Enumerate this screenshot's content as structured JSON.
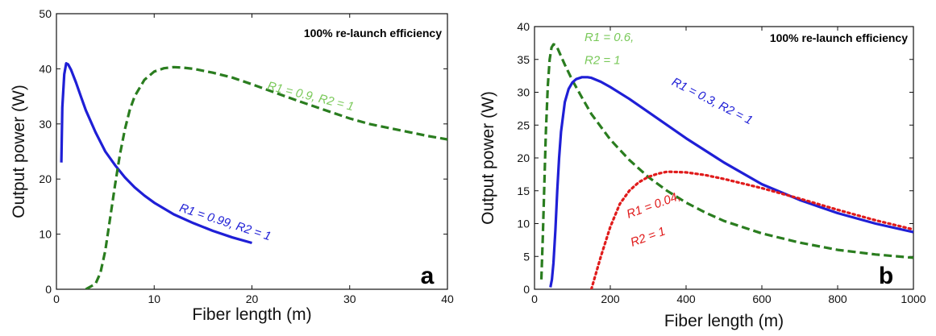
{
  "chart_data": [
    {
      "type": "line",
      "panel_letter": "a",
      "annotation": "100% re-launch efficiency",
      "xlabel": "Fiber length (m)",
      "ylabel": "Output power (W)",
      "xlim": [
        0,
        40
      ],
      "ylim": [
        0,
        50
      ],
      "xticks": [
        0,
        10,
        20,
        30,
        40
      ],
      "yticks": [
        0,
        10,
        20,
        30,
        40,
        50
      ],
      "grid": false,
      "series": [
        {
          "label": "R1 = 0.99, R2 = 1",
          "color": "#1f1fd6",
          "style": "solid",
          "x": [
            0.5,
            0.6,
            0.8,
            1.0,
            1.2,
            1.5,
            2,
            2.5,
            3,
            4,
            5,
            6,
            7,
            8,
            9,
            10,
            12,
            14,
            16,
            18,
            20
          ],
          "y": [
            23,
            33,
            39,
            41,
            40.8,
            39.8,
            37.5,
            35,
            32.5,
            28.5,
            25,
            22.5,
            20.3,
            18.5,
            17,
            15.7,
            13.6,
            12,
            10.6,
            9.4,
            8.4
          ]
        },
        {
          "label": "R1 = 0.9, R2 = 1",
          "color": "#2a7d1f",
          "style": "dashed",
          "x": [
            3,
            3.5,
            4,
            4.5,
            5,
            5.5,
            6,
            6.5,
            7,
            7.5,
            8,
            9,
            10,
            11,
            12,
            13,
            14,
            16,
            18,
            20,
            22,
            25,
            28,
            30,
            32,
            35,
            38,
            40
          ],
          "y": [
            0,
            0.5,
            1,
            3,
            7,
            13,
            19,
            24.5,
            29,
            32.5,
            35,
            38,
            39.5,
            40.1,
            40.3,
            40.2,
            40,
            39.3,
            38.4,
            37.2,
            35.9,
            34,
            32.2,
            31,
            30,
            28.9,
            27.8,
            27.2
          ]
        }
      ],
      "labels_on_curves": [
        {
          "text": "R1 = 0.99, R2 = 1",
          "x": 12.5,
          "y": 14.2,
          "rotate": 18,
          "color": "#1f1fd6"
        },
        {
          "text": "R1 = 0.9, R2 = 1",
          "x": 21.5,
          "y": 36.3,
          "rotate": 14,
          "color": "#7ac95a"
        }
      ]
    },
    {
      "type": "line",
      "panel_letter": "b",
      "annotation": "100% re-launch efficiency",
      "xlabel": "Fiber length (m)",
      "ylabel": "Output power (W)",
      "xlim": [
        0,
        1000
      ],
      "ylim": [
        0,
        40
      ],
      "xticks": [
        0,
        200,
        400,
        600,
        800,
        1000
      ],
      "yticks": [
        0,
        5,
        10,
        15,
        20,
        25,
        30,
        35,
        40
      ],
      "grid": false,
      "series": [
        {
          "label": "R1 = 0.6, R2 = 1",
          "color": "#2a7d1f",
          "style": "dashed",
          "x": [
            18,
            22,
            26,
            30,
            35,
            40,
            45,
            50,
            55,
            60,
            70,
            80,
            100,
            125,
            150,
            200,
            250,
            300,
            350,
            400,
            450,
            500,
            600,
            700,
            800,
            900,
            1000
          ],
          "y": [
            1.5,
            8,
            16,
            24,
            31,
            35,
            36.8,
            37.3,
            37.2,
            36.8,
            35.5,
            34.2,
            31.8,
            29.2,
            26.7,
            22.8,
            19.7,
            17.1,
            15,
            13.2,
            11.7,
            10.4,
            8.5,
            7.1,
            6,
            5.3,
            4.8
          ]
        },
        {
          "label": "R1 = 0.3, R2 = 1",
          "color": "#1f1fd6",
          "style": "solid",
          "x": [
            42,
            46,
            50,
            55,
            60,
            65,
            70,
            80,
            90,
            100,
            110,
            125,
            140,
            150,
            175,
            200,
            250,
            300,
            400,
            500,
            600,
            700,
            800,
            900,
            1000
          ],
          "y": [
            0.3,
            1.5,
            4,
            9,
            15,
            20,
            24,
            28.5,
            30.5,
            31.5,
            32,
            32.3,
            32.3,
            32.2,
            31.6,
            30.8,
            29,
            27,
            23,
            19.3,
            16,
            13.6,
            11.6,
            10,
            8.7
          ]
        },
        {
          "label": "R1 = 0.04, R2 = 1",
          "color": "#e01b1b",
          "style": "dotted",
          "x": [
            150,
            175,
            200,
            225,
            250,
            275,
            300,
            325,
            350,
            400,
            450,
            500,
            550,
            600,
            650,
            700,
            800,
            900,
            1000
          ],
          "y": [
            0,
            5,
            9.5,
            13,
            15,
            16.3,
            17.1,
            17.6,
            17.9,
            17.8,
            17.4,
            16.8,
            16.1,
            15.4,
            14.6,
            13.8,
            12.1,
            10.5,
            9.1
          ]
        }
      ],
      "labels_on_curves": [
        {
          "text": "R1 = 0.6,",
          "x": 132,
          "y": 37.8,
          "rotate": 0,
          "color": "#7ac95a"
        },
        {
          "text": "R2 = 1",
          "x": 132,
          "y": 34.3,
          "rotate": 0,
          "color": "#7ac95a"
        },
        {
          "text": "R1 = 0.3, R2 = 1",
          "x": 360,
          "y": 31.2,
          "rotate": 27,
          "color": "#1f1fd6"
        },
        {
          "text": "R1 = 0.04,",
          "x": 248,
          "y": 10.8,
          "rotate": -20,
          "color": "#e01b1b"
        },
        {
          "text": "R2 = 1",
          "x": 258,
          "y": 6.5,
          "rotate": -20,
          "color": "#e01b1b"
        }
      ]
    }
  ]
}
